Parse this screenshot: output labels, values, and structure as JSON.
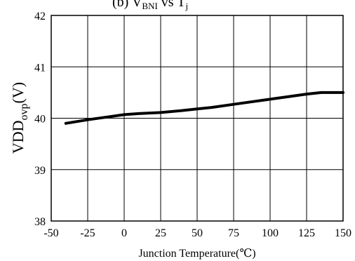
{
  "chart_data": {
    "type": "line",
    "title": "(b) V",
    "title_sub": "BNI",
    "title_mid": " vs T",
    "title_sub2": "j",
    "xlabel": "Junction Temperature(℃)",
    "ylabel_main": "VDD",
    "ylabel_sub": "ovp",
    "ylabel_unit": "(V)",
    "xlim": [
      -50,
      150
    ],
    "ylim": [
      38,
      42
    ],
    "xticks": [
      -50,
      -25,
      0,
      25,
      50,
      75,
      100,
      125,
      150
    ],
    "yticks": [
      38,
      39,
      40,
      41,
      42
    ],
    "grid": true,
    "series": [
      {
        "x": [
          -40,
          -25,
          -10,
          0,
          10,
          25,
          40,
          50,
          60,
          75,
          90,
          100,
          110,
          125,
          135,
          150
        ],
        "y": [
          39.9,
          39.97,
          40.03,
          40.07,
          40.09,
          40.11,
          40.15,
          40.18,
          40.21,
          40.27,
          40.33,
          40.37,
          40.41,
          40.47,
          40.5,
          40.5
        ],
        "color": "#000000"
      }
    ]
  }
}
